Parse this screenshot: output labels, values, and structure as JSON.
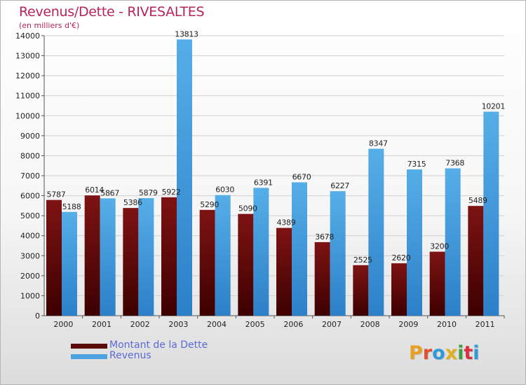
{
  "title": "Revenus/Dette - RIVESALTES",
  "subtitle": "(en milliers d'€)",
  "chart_data": {
    "type": "bar",
    "categories": [
      "2000",
      "2001",
      "2002",
      "2003",
      "2004",
      "2005",
      "2006",
      "2007",
      "2008",
      "2009",
      "2010",
      "2011"
    ],
    "series": [
      {
        "name": "Montant de la Dette",
        "color": "#6b0a0a",
        "values": [
          5787,
          6014,
          5386,
          5922,
          5290,
          5090,
          4389,
          3678,
          2525,
          2620,
          3200,
          5489
        ]
      },
      {
        "name": "Revenus",
        "color": "#4da3e0",
        "values": [
          5188,
          5867,
          5879,
          13813,
          6030,
          6391,
          6670,
          6227,
          8347,
          7315,
          7368,
          10201
        ]
      }
    ],
    "yticks": [
      0,
      1000,
      2000,
      3000,
      4000,
      5000,
      6000,
      7000,
      8000,
      9000,
      10000,
      11000,
      12000,
      13000,
      14000
    ],
    "ylim": [
      0,
      14000
    ],
    "grid": true,
    "legend_position": "bottom-left"
  },
  "legend": [
    {
      "label": "Montant de la Dette",
      "color": "#6b0a0a"
    },
    {
      "label": "Revenus",
      "color": "#4da3e0"
    }
  ],
  "logo": {
    "letters": [
      "P",
      "r",
      "o",
      "x",
      "i",
      "t",
      "i"
    ],
    "colors": [
      "#e8a020",
      "#e05030",
      "#2e9ad8",
      "#e0b020",
      "#40a040",
      "#d83040",
      "#2e9ad8"
    ]
  }
}
